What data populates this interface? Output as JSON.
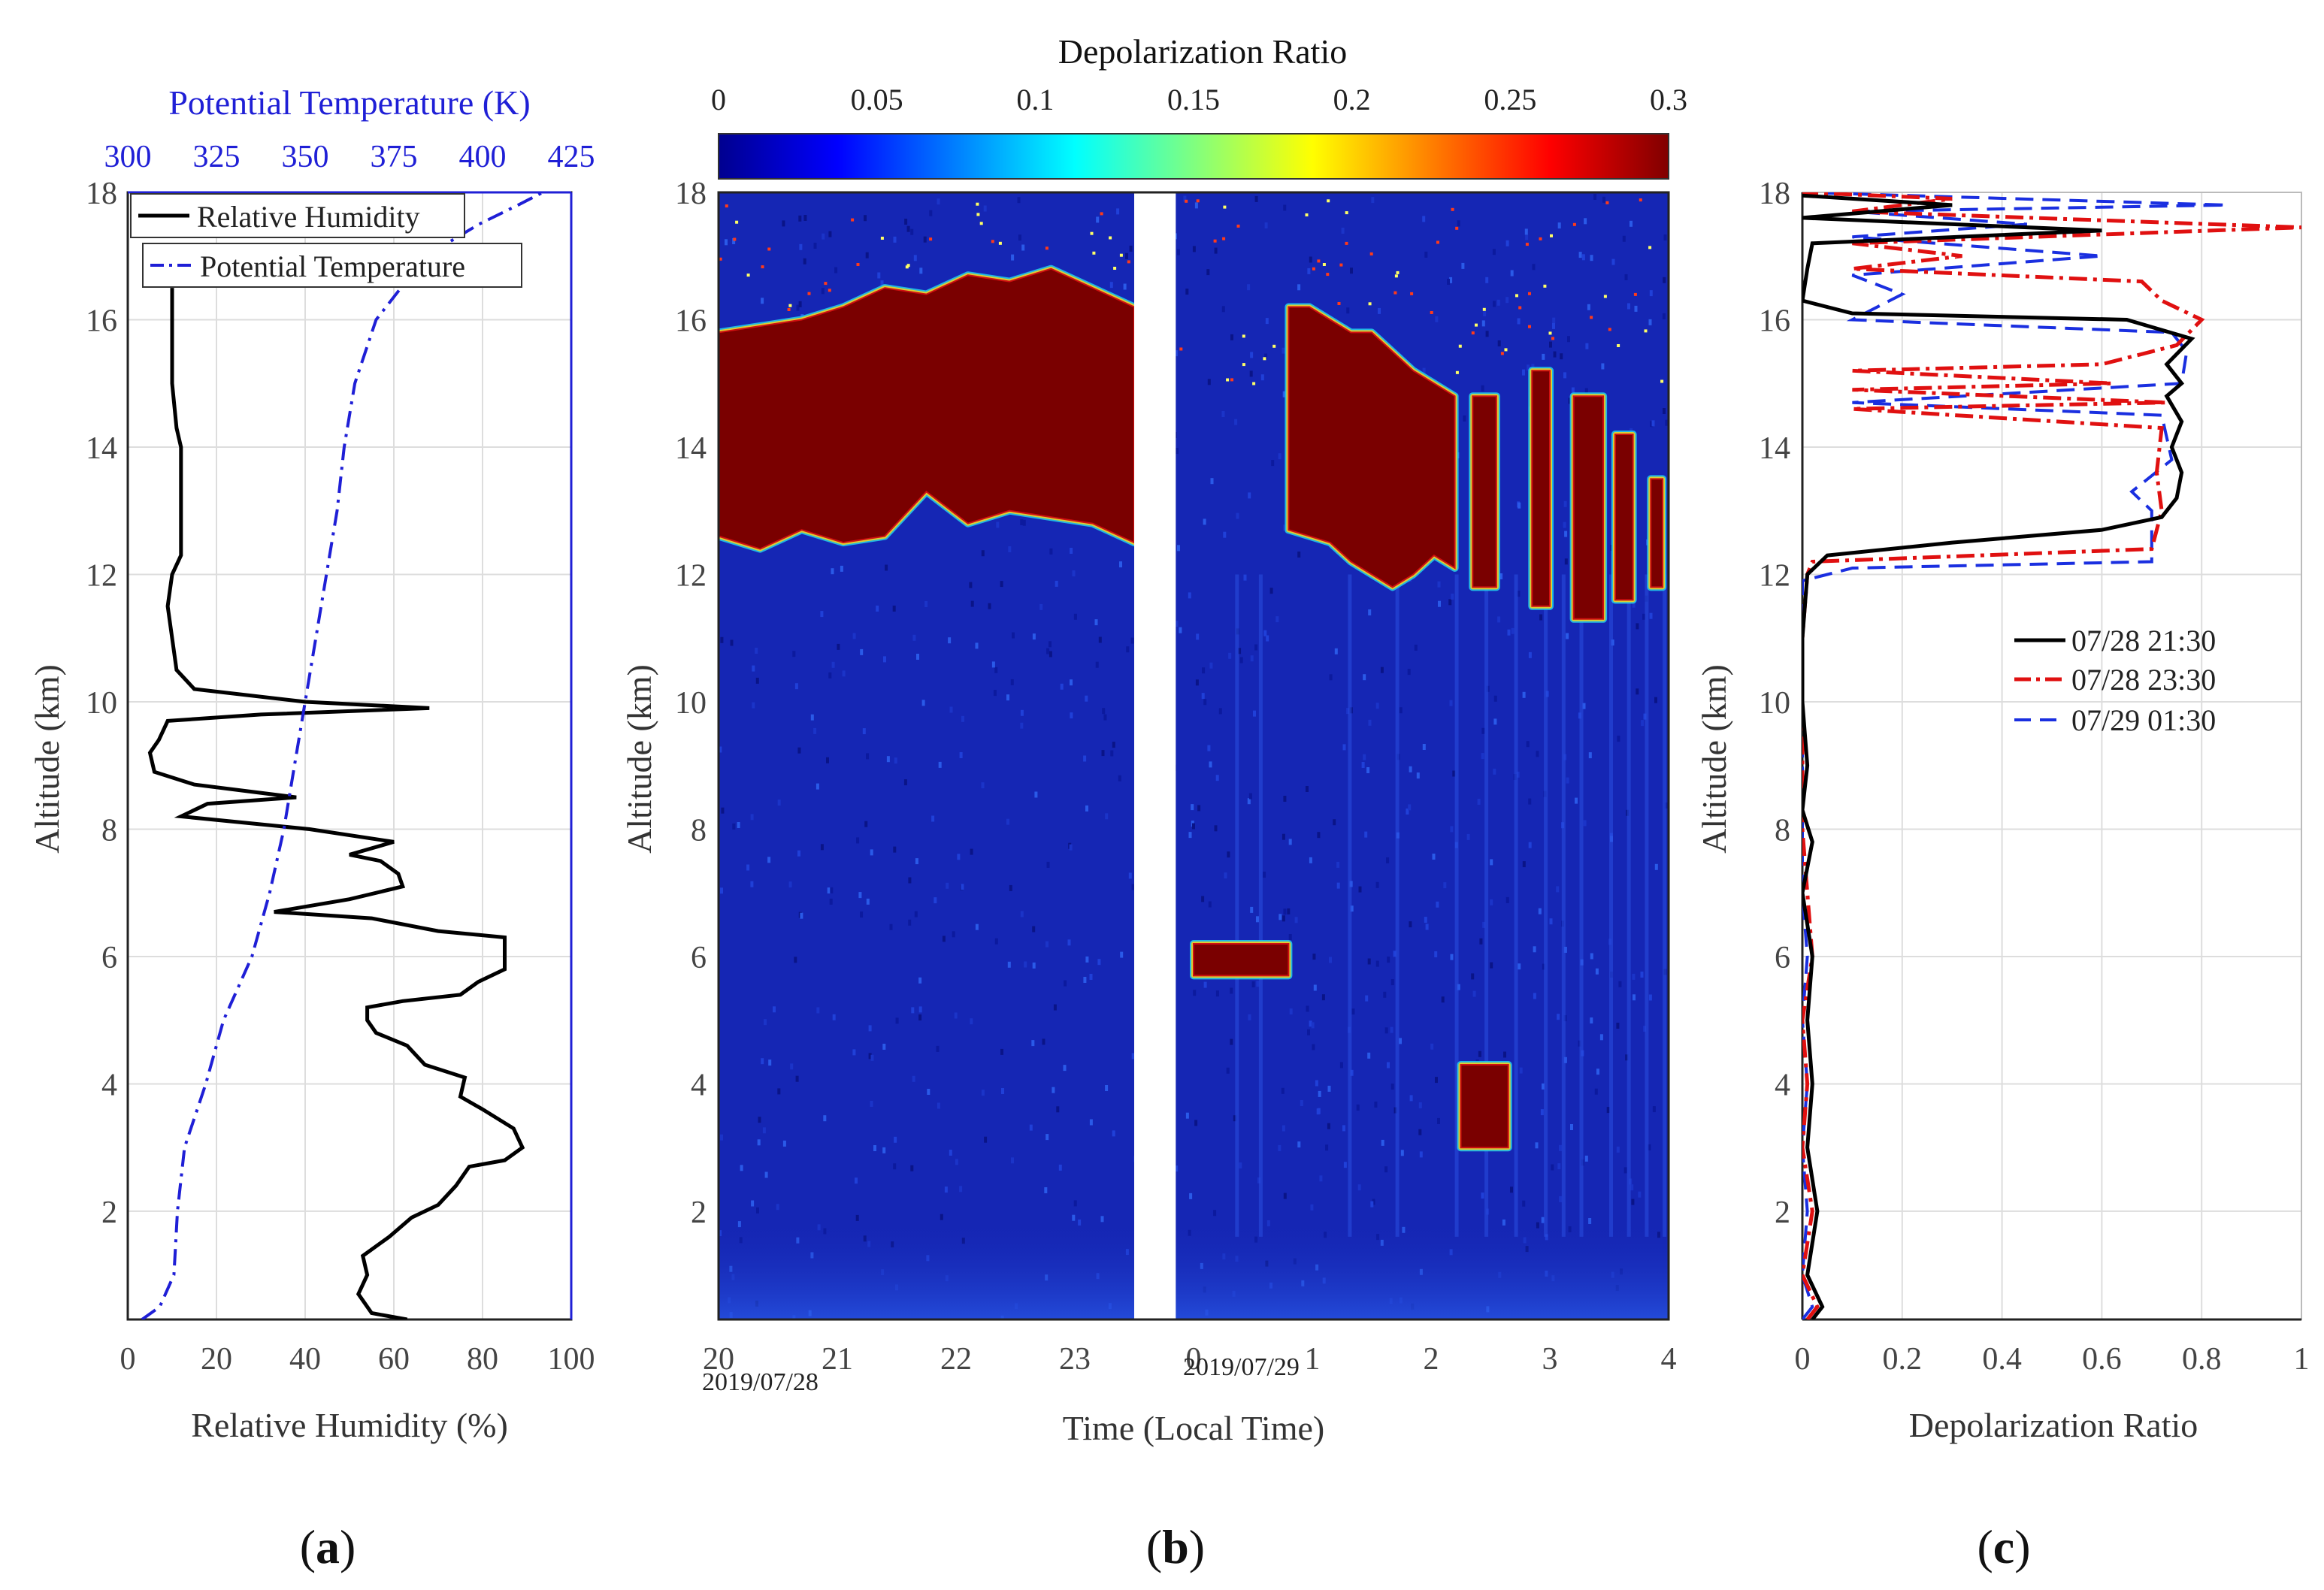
{
  "panel_a": {
    "label": "(a)",
    "bottom_axis_title": "Relative Humidity (%)",
    "top_axis_title": "Potential Temperature (K)",
    "y_axis_title": "Altitude (km)",
    "legend": [
      "Relative Humidity",
      "Potential Temperature"
    ],
    "bottom_ticks": [
      "0",
      "20",
      "40",
      "60",
      "80",
      "100"
    ],
    "top_ticks": [
      "300",
      "325",
      "350",
      "375",
      "400",
      "425"
    ],
    "y_ticks": [
      "2",
      "4",
      "6",
      "8",
      "10",
      "12",
      "14",
      "16",
      "18"
    ]
  },
  "panel_b": {
    "label": "(b)",
    "colorbar_title": "Depolarization Ratio",
    "colorbar_ticks": [
      "0",
      "0.05",
      "0.1",
      "0.15",
      "0.2",
      "0.25",
      "0.3"
    ],
    "x_axis_title": "Time (Local Time)",
    "y_axis_title": "Altitude (km)",
    "x_ticks": [
      "20",
      "21",
      "22",
      "23",
      "0",
      "1",
      "2",
      "3",
      "4"
    ],
    "date_start": "2019/07/28",
    "date_end": "2019/07/29",
    "y_ticks": [
      "2",
      "4",
      "6",
      "8",
      "10",
      "12",
      "14",
      "16",
      "18"
    ]
  },
  "panel_c": {
    "label": "(c)",
    "x_axis_title": "Depolarization Ratio",
    "y_axis_title": "Altitude (km)",
    "x_ticks": [
      "0",
      "0.2",
      "0.4",
      "0.6",
      "0.8",
      "1"
    ],
    "y_ticks": [
      "2",
      "4",
      "6",
      "8",
      "10",
      "12",
      "14",
      "16",
      "18"
    ],
    "legend": [
      "07/28 21:30",
      "07/28 23:30",
      "07/29 01:30"
    ]
  },
  "colors": {
    "rh": "#000000",
    "theta": "#1f1fd6",
    "c_2130": "#000000",
    "c_2330": "#e01010",
    "c_0130": "#1a2fe0",
    "cloud": "#7a0000",
    "clear": "#1526b4",
    "grid": "#dddddd"
  },
  "chart_data": [
    {
      "type": "line",
      "title": "(a)",
      "xlabel": "Relative Humidity (%)",
      "x2label": "Potential Temperature (K)",
      "ylabel": "Altitude (km)",
      "xlim": [
        0,
        100
      ],
      "x2lim": [
        300,
        425
      ],
      "ylim": [
        0.3,
        18
      ],
      "series": [
        {
          "name": "Relative Humidity",
          "style": "solid",
          "points": [
            [
              63,
              0.3
            ],
            [
              55,
              0.4
            ],
            [
              52,
              0.7
            ],
            [
              54,
              1.0
            ],
            [
              53,
              1.3
            ],
            [
              59,
              1.6
            ],
            [
              64,
              1.9
            ],
            [
              70,
              2.1
            ],
            [
              74,
              2.4
            ],
            [
              77,
              2.7
            ],
            [
              85,
              2.8
            ],
            [
              89,
              3.0
            ],
            [
              87,
              3.3
            ],
            [
              80,
              3.6
            ],
            [
              75,
              3.8
            ],
            [
              76,
              4.1
            ],
            [
              67,
              4.3
            ],
            [
              63,
              4.6
            ],
            [
              56,
              4.8
            ],
            [
              54,
              5.0
            ],
            [
              54,
              5.2
            ],
            [
              62,
              5.3
            ],
            [
              75,
              5.4
            ],
            [
              79,
              5.6
            ],
            [
              85,
              5.8
            ],
            [
              85,
              6.1
            ],
            [
              85,
              6.3
            ],
            [
              70,
              6.4
            ],
            [
              55,
              6.6
            ],
            [
              33,
              6.7
            ],
            [
              50,
              6.9
            ],
            [
              62,
              7.1
            ],
            [
              61,
              7.3
            ],
            [
              57,
              7.5
            ],
            [
              50,
              7.6
            ],
            [
              60,
              7.8
            ],
            [
              41,
              8.0
            ],
            [
              12,
              8.2
            ],
            [
              18,
              8.4
            ],
            [
              38,
              8.5
            ],
            [
              15,
              8.7
            ],
            [
              6,
              8.9
            ],
            [
              5,
              9.2
            ],
            [
              7,
              9.4
            ],
            [
              9,
              9.7
            ],
            [
              30,
              9.8
            ],
            [
              68,
              9.9
            ],
            [
              40,
              10.0
            ],
            [
              15,
              10.2
            ],
            [
              11,
              10.5
            ],
            [
              10,
              11.0
            ],
            [
              9,
              11.5
            ],
            [
              10,
              12.0
            ],
            [
              12,
              12.3
            ],
            [
              12,
              13.0
            ],
            [
              12,
              14.0
            ],
            [
              11,
              14.3
            ],
            [
              10,
              15.0
            ],
            [
              10,
              16.0
            ],
            [
              10,
              16.5
            ]
          ]
        },
        {
          "name": "Potential Temperature",
          "style": "dashed",
          "points": [
            [
              304,
              0.3
            ],
            [
              309,
              0.5
            ],
            [
              313,
              1.0
            ],
            [
              314,
              2.0
            ],
            [
              316,
              3.0
            ],
            [
              322,
              4.0
            ],
            [
              327,
              5.0
            ],
            [
              335,
              6.0
            ],
            [
              340,
              7.0
            ],
            [
              344,
              8.0
            ],
            [
              347,
              9.0
            ],
            [
              350,
              10.0
            ],
            [
              353,
              11.0
            ],
            [
              356,
              12.0
            ],
            [
              359,
              13.0
            ],
            [
              361,
              14.0
            ],
            [
              364,
              15.0
            ],
            [
              370,
              16.0
            ],
            [
              384,
              17.0
            ],
            [
              399,
              17.5
            ],
            [
              410,
              17.8
            ],
            [
              417,
              18.0
            ]
          ]
        }
      ]
    },
    {
      "type": "heatmap",
      "title": "(b)",
      "xlabel": "Time (Local Time)",
      "ylabel": "Altitude (km)",
      "colorbar_label": "Depolarization Ratio",
      "clim": [
        0,
        0.3
      ],
      "xlim": [
        20,
        28
      ],
      "ylim": [
        0.3,
        18
      ],
      "data_gap": [
        23.5,
        23.85
      ],
      "cloud_regions": [
        {
          "t_start": 20.0,
          "t_end": 23.5,
          "alt_bottom": [
            12.6,
            12.4,
            12.7,
            12.5,
            12.6,
            13.3,
            12.8,
            13.0,
            12.9,
            12.8,
            12.5
          ],
          "alt_top": [
            15.8,
            15.9,
            16.0,
            16.2,
            16.5,
            16.4,
            16.7,
            16.6,
            16.8,
            16.5,
            16.2
          ]
        },
        {
          "t_start": 24.8,
          "t_end": 26.2,
          "alt_bottom": [
            12.7,
            12.6,
            12.5,
            12.2,
            12.0,
            11.8,
            12.0,
            12.3,
            12.1
          ],
          "alt_top": [
            16.2,
            16.2,
            16.0,
            15.8,
            15.8,
            15.5,
            15.2,
            15.0,
            14.8
          ]
        },
        {
          "t_start": 26.35,
          "t_end": 26.55,
          "alt_bottom": [
            11.8
          ],
          "alt_top": [
            14.8
          ]
        },
        {
          "t_start": 26.85,
          "t_end": 27.0,
          "alt_bottom": [
            11.5
          ],
          "alt_top": [
            15.2
          ]
        },
        {
          "t_start": 27.2,
          "t_end": 27.45,
          "alt_bottom": [
            11.3
          ],
          "alt_top": [
            14.8
          ]
        },
        {
          "t_start": 27.55,
          "t_end": 27.7,
          "alt_bottom": [
            11.6
          ],
          "alt_top": [
            14.2
          ]
        },
        {
          "t_start": 27.85,
          "t_end": 27.95,
          "alt_bottom": [
            11.8
          ],
          "alt_top": [
            13.5
          ]
        },
        {
          "t_start": 24.0,
          "t_end": 24.8,
          "alt_bottom": [
            5.7
          ],
          "alt_top": [
            6.2
          ]
        },
        {
          "t_start": 26.25,
          "t_end": 26.65,
          "alt_bottom": [
            3.0
          ],
          "alt_top": [
            4.3
          ]
        }
      ]
    },
    {
      "type": "line",
      "title": "(c)",
      "xlabel": "Depolarization Ratio",
      "ylabel": "Altitude (km)",
      "xlim": [
        0,
        1
      ],
      "ylim": [
        0.3,
        18
      ],
      "series": [
        {
          "name": "07/28 21:30",
          "style": "solid",
          "points": [
            [
              0.02,
              0.3
            ],
            [
              0.04,
              0.5
            ],
            [
              0.01,
              1.0
            ],
            [
              0.03,
              2.0
            ],
            [
              0.01,
              3.0
            ],
            [
              0.02,
              4.0
            ],
            [
              0.01,
              5.0
            ],
            [
              0.02,
              6.0
            ],
            [
              0.0,
              7.0
            ],
            [
              0.02,
              7.8
            ],
            [
              0.0,
              8.3
            ],
            [
              0.01,
              9.0
            ],
            [
              0.0,
              10.0
            ],
            [
              0.0,
              11.0
            ],
            [
              0.01,
              12.0
            ],
            [
              0.05,
              12.3
            ],
            [
              0.3,
              12.5
            ],
            [
              0.6,
              12.7
            ],
            [
              0.72,
              12.9
            ],
            [
              0.75,
              13.2
            ],
            [
              0.76,
              13.6
            ],
            [
              0.74,
              14.0
            ],
            [
              0.76,
              14.4
            ],
            [
              0.73,
              14.8
            ],
            [
              0.76,
              15.0
            ],
            [
              0.73,
              15.3
            ],
            [
              0.78,
              15.7
            ],
            [
              0.65,
              16.0
            ],
            [
              0.1,
              16.1
            ],
            [
              0.0,
              16.3
            ],
            [
              0.01,
              16.8
            ],
            [
              0.02,
              17.2
            ],
            [
              0.6,
              17.4
            ],
            [
              0.0,
              17.6
            ],
            [
              0.3,
              17.8
            ],
            [
              0.0,
              17.95
            ]
          ]
        },
        {
          "name": "07/28 23:30",
          "style": "dashdot",
          "points": [
            [
              0.01,
              0.3
            ],
            [
              0.03,
              0.5
            ],
            [
              0.0,
              1.0
            ],
            [
              0.02,
              2.0
            ],
            [
              0.0,
              3.0
            ],
            [
              0.01,
              4.0
            ],
            [
              0.0,
              5.0
            ],
            [
              0.02,
              6.0
            ],
            [
              0.01,
              7.0
            ],
            [
              0.0,
              8.0
            ],
            [
              0.0,
              9.0
            ],
            [
              0.0,
              10.0
            ],
            [
              0.0,
              11.0
            ],
            [
              0.01,
              12.0
            ],
            [
              0.02,
              12.2
            ],
            [
              0.7,
              12.4
            ],
            [
              0.72,
              13.0
            ],
            [
              0.71,
              13.6
            ],
            [
              0.72,
              14.3
            ],
            [
              0.1,
              14.6
            ],
            [
              0.73,
              14.7
            ],
            [
              0.1,
              14.9
            ],
            [
              0.62,
              15.0
            ],
            [
              0.1,
              15.2
            ],
            [
              0.6,
              15.3
            ],
            [
              0.75,
              15.6
            ],
            [
              0.8,
              16.0
            ],
            [
              0.72,
              16.3
            ],
            [
              0.68,
              16.6
            ],
            [
              0.1,
              16.8
            ],
            [
              0.32,
              17.0
            ],
            [
              0.1,
              17.2
            ],
            [
              1.0,
              17.45
            ],
            [
              0.1,
              17.7
            ],
            [
              0.3,
              17.9
            ],
            [
              0.0,
              18.0
            ]
          ]
        },
        {
          "name": "07/29 01:30",
          "style": "dashed",
          "points": [
            [
              0.0,
              0.3
            ],
            [
              0.02,
              0.5
            ],
            [
              0.0,
              1.0
            ],
            [
              0.01,
              2.0
            ],
            [
              0.0,
              3.0
            ],
            [
              0.01,
              4.0
            ],
            [
              0.0,
              5.0
            ],
            [
              0.01,
              6.0
            ],
            [
              0.0,
              7.0
            ],
            [
              0.0,
              8.0
            ],
            [
              0.0,
              9.0
            ],
            [
              0.0,
              10.0
            ],
            [
              0.0,
              11.0
            ],
            [
              0.0,
              11.9
            ],
            [
              0.05,
              12.0
            ],
            [
              0.1,
              12.1
            ],
            [
              0.7,
              12.2
            ],
            [
              0.7,
              13.0
            ],
            [
              0.66,
              13.3
            ],
            [
              0.74,
              13.8
            ],
            [
              0.72,
              14.5
            ],
            [
              0.1,
              14.7
            ],
            [
              0.76,
              15.0
            ],
            [
              0.77,
              15.5
            ],
            [
              0.74,
              15.8
            ],
            [
              0.1,
              16.0
            ],
            [
              0.2,
              16.4
            ],
            [
              0.1,
              16.7
            ],
            [
              0.6,
              17.0
            ],
            [
              0.1,
              17.3
            ],
            [
              0.45,
              17.5
            ],
            [
              0.1,
              17.7
            ],
            [
              0.85,
              17.8
            ],
            [
              0.0,
              18.0
            ]
          ]
        }
      ]
    }
  ]
}
